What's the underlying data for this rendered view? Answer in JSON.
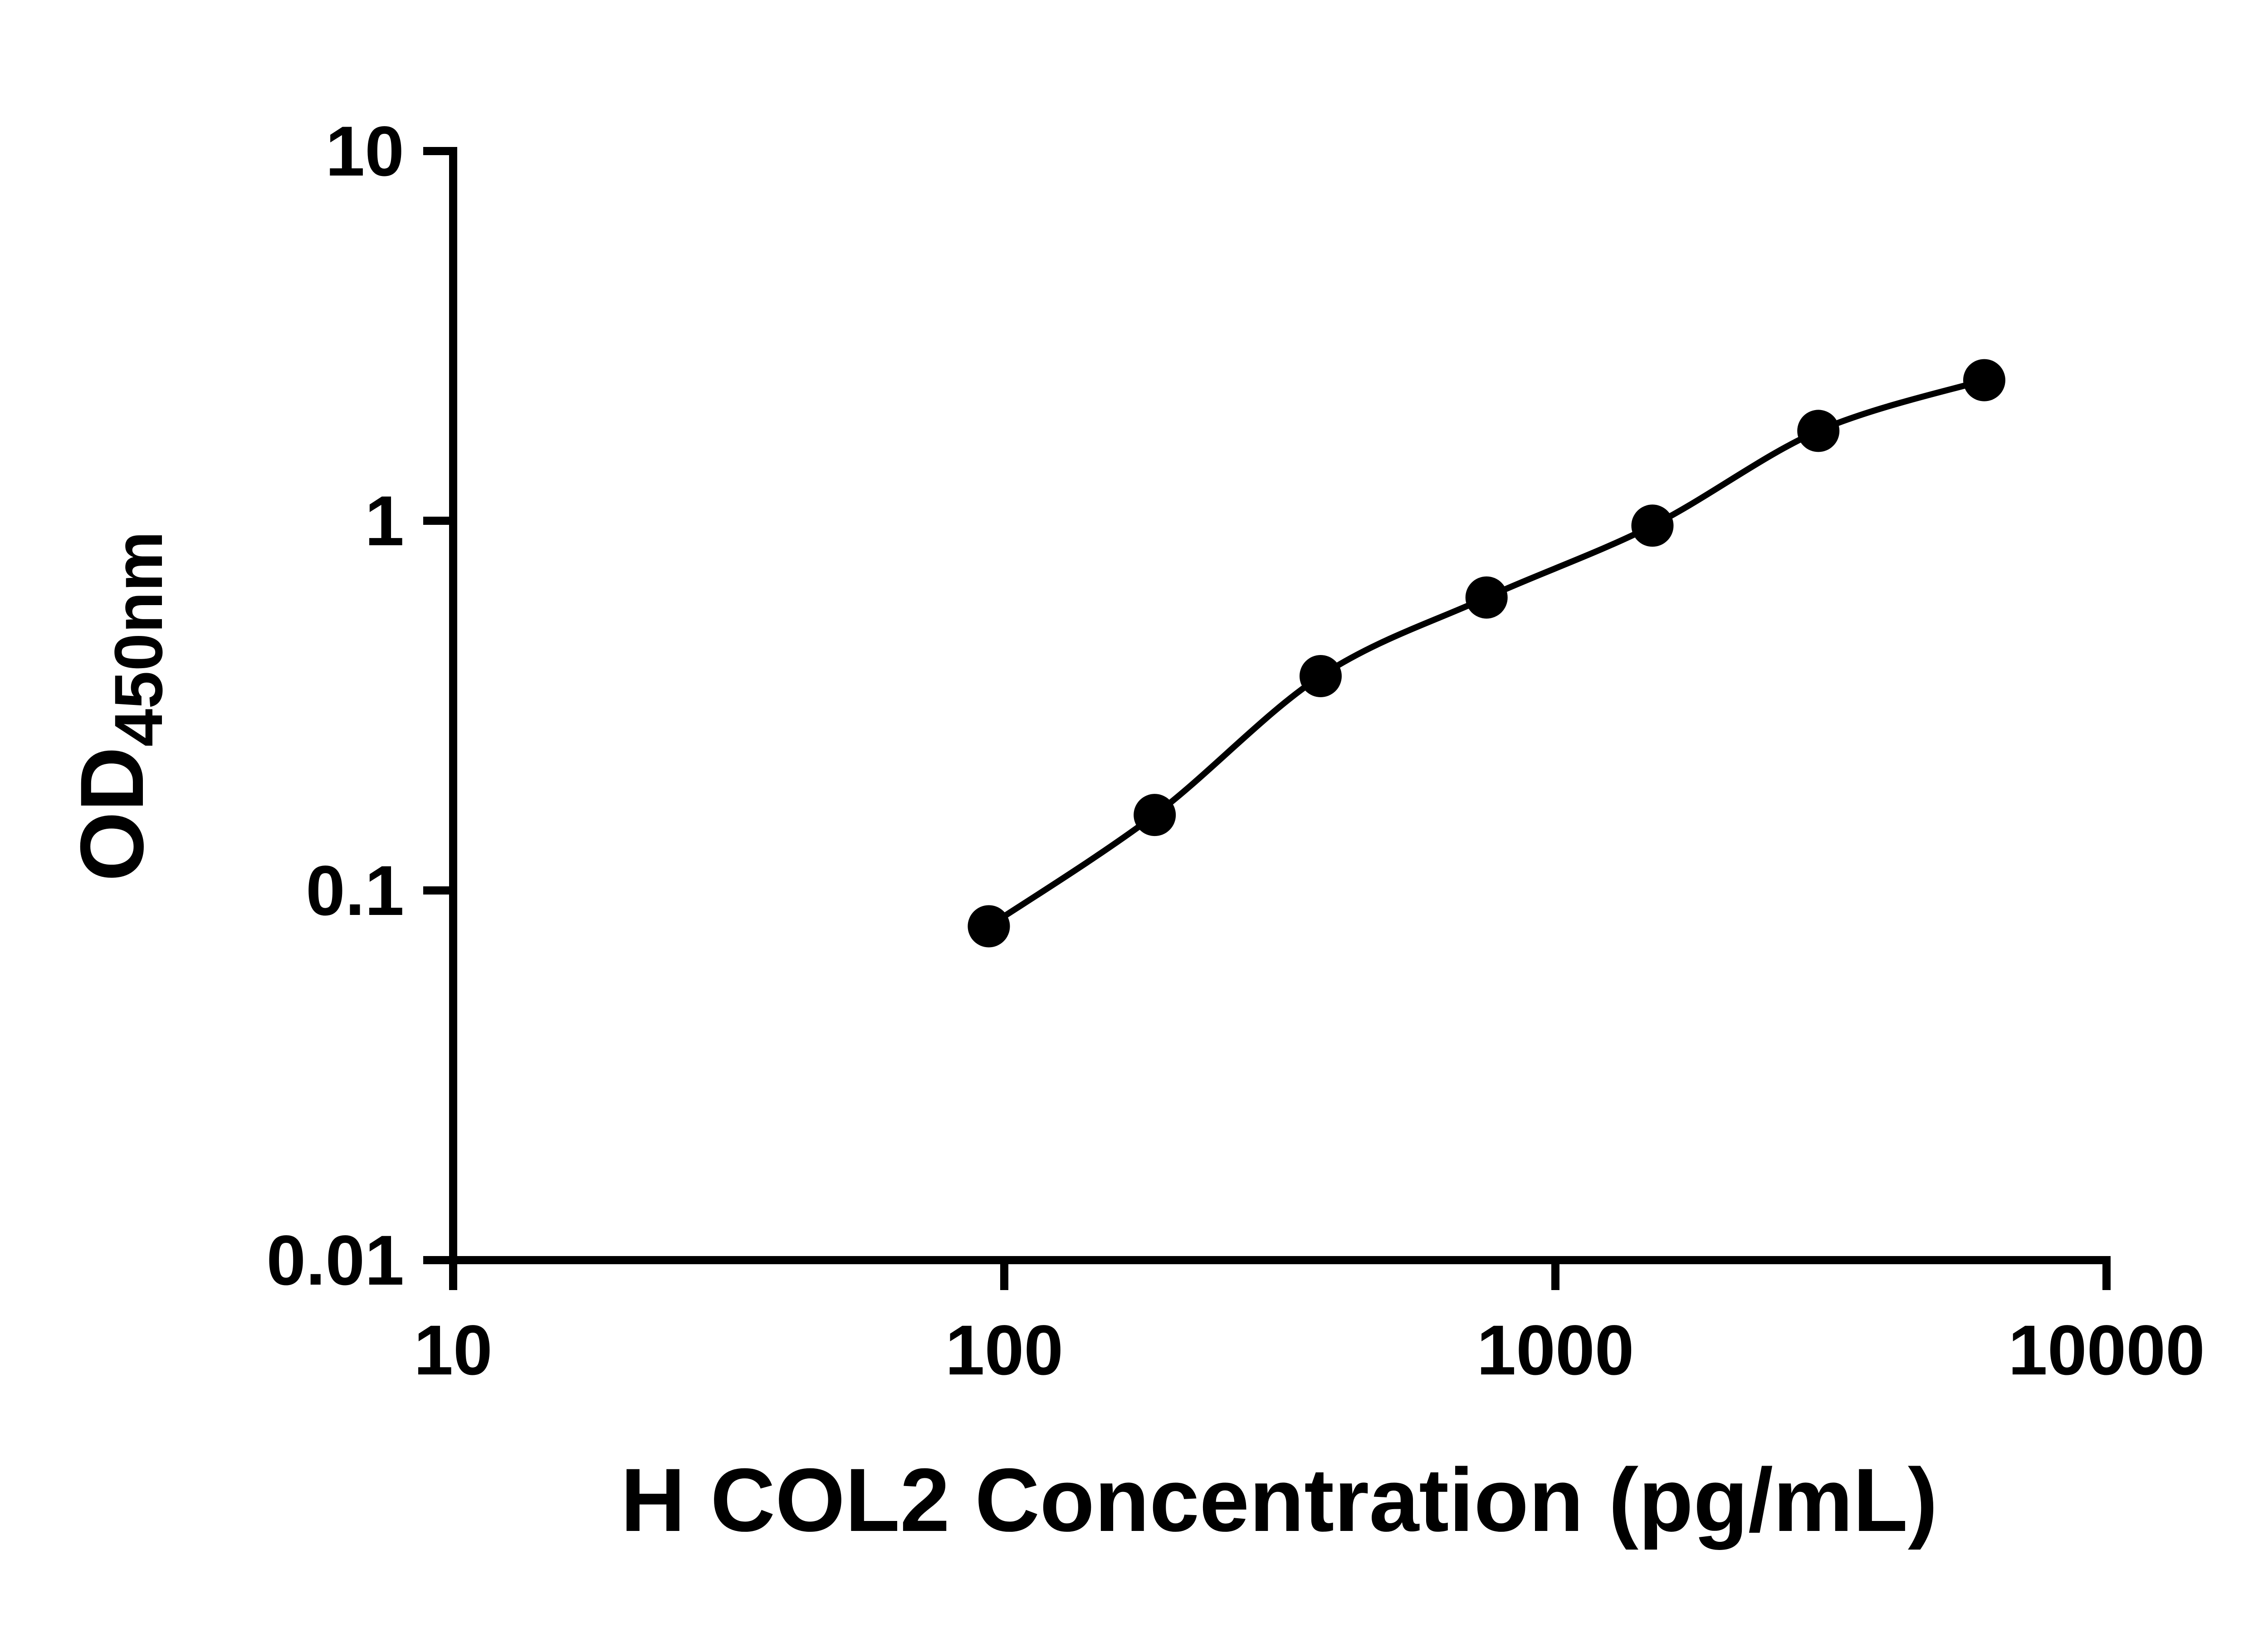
{
  "page": {
    "background": "#ffffff"
  },
  "chart_data": {
    "type": "scatter",
    "scale": "log-log",
    "title": "",
    "xlabel": "H COL2 Concentration (pg/mL)",
    "ylabel": "OD450nm",
    "ylabel_main": "OD",
    "ylabel_sub": "450nm",
    "x": [
      93.75,
      187.5,
      375,
      750,
      1500,
      3000,
      6000
    ],
    "y": [
      0.08,
      0.16,
      0.38,
      0.62,
      0.97,
      1.75,
      2.4
    ],
    "xlim": [
      10,
      10000
    ],
    "ylim": [
      0.01,
      10
    ],
    "x_ticks": [
      10,
      100,
      1000,
      10000
    ],
    "x_tick_labels": [
      "10",
      "100",
      "1000",
      "10000"
    ],
    "y_ticks": [
      0.01,
      0.1,
      1,
      10
    ],
    "y_tick_labels": [
      "0.01",
      "0.1",
      "1",
      "10"
    ],
    "grid": false,
    "legend": false,
    "curve": "smooth-fit-through-points",
    "marker_color": "#000000",
    "line_color": "#000000",
    "axis_color": "#000000"
  }
}
